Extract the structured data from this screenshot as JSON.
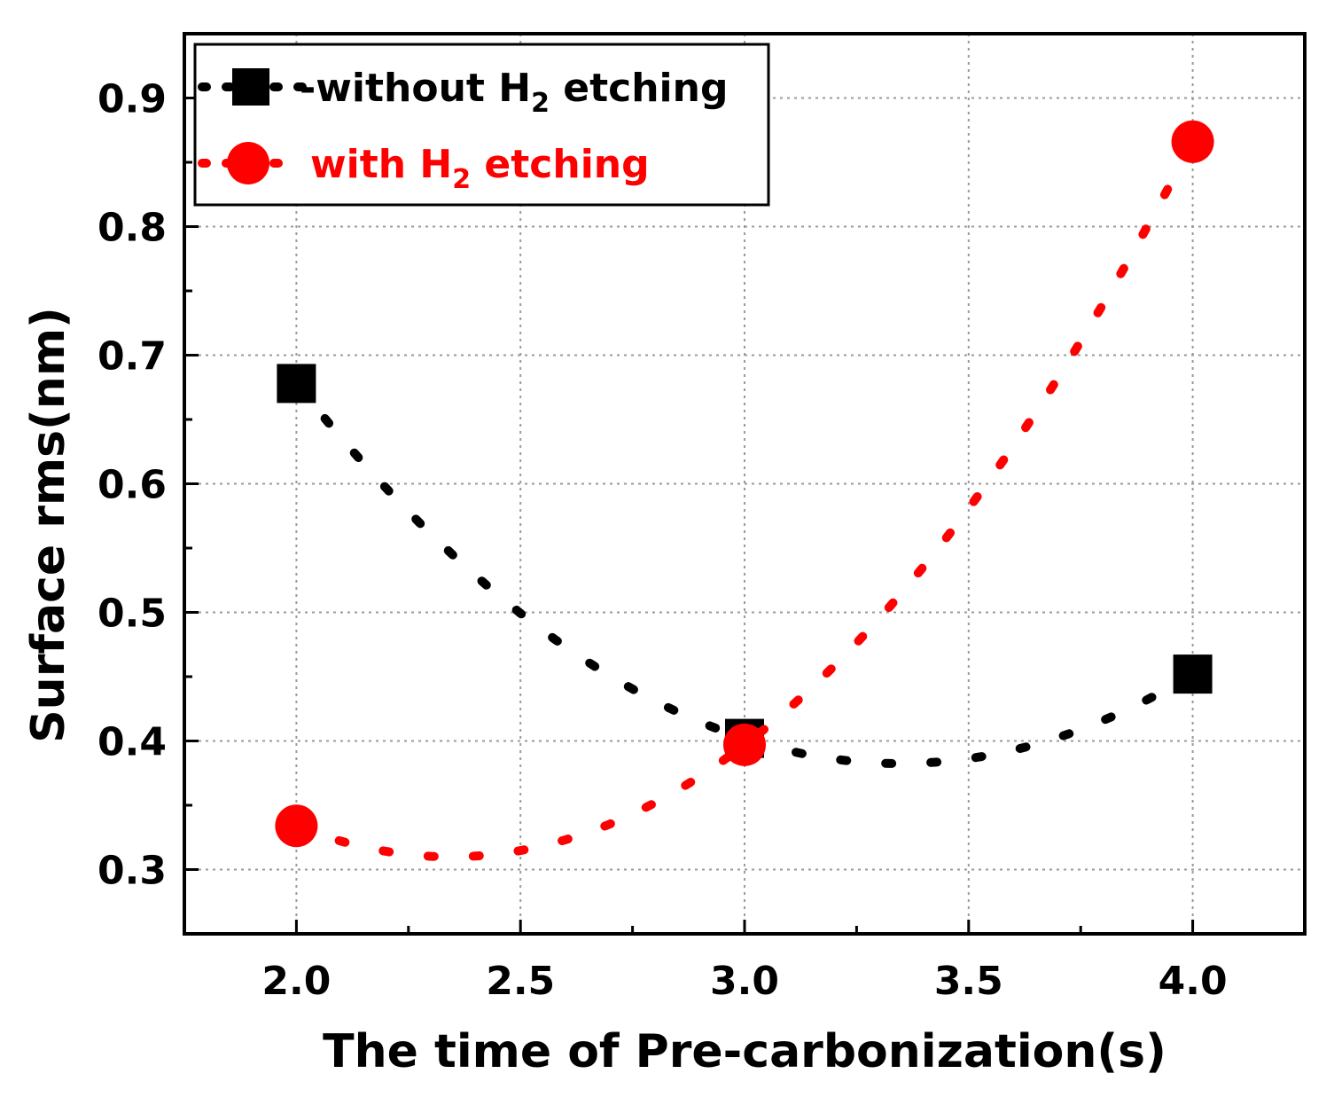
{
  "chart_data": {
    "type": "line",
    "title": "",
    "xlabel": "The time of Pre-carbonization(s)",
    "ylabel": "Surface rms(nm)",
    "xlim": [
      1.75,
      4.25
    ],
    "ylim": [
      0.25,
      0.95
    ],
    "xticks": [
      "2.0",
      "2.5",
      "3.0",
      "3.5",
      "4.0"
    ],
    "yticks": [
      "0.3",
      "0.4",
      "0.5",
      "0.6",
      "0.7",
      "0.8",
      "0.9"
    ],
    "grid": true,
    "legend_position": "top-left",
    "series": [
      {
        "name": "-without H2 etching",
        "legend_prefix": "-without H",
        "legend_subscript": "2",
        "legend_suffix": " etching",
        "color": "#000000",
        "marker": "square",
        "line_style": "dotted",
        "x": [
          2.0,
          3.0,
          4.0
        ],
        "y": [
          0.678,
          0.402,
          0.452
        ]
      },
      {
        "name": "with H2 etching",
        "legend_prefix": "with H",
        "legend_subscript": "2",
        "legend_suffix": " etching",
        "color": "#ff0000",
        "marker": "circle",
        "line_style": "dotted",
        "x": [
          2.0,
          3.0,
          4.0
        ],
        "y": [
          0.334,
          0.397,
          0.866
        ]
      }
    ]
  }
}
